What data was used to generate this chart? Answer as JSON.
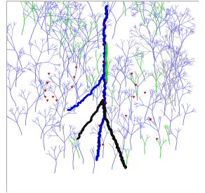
{
  "background_color": "#ffffff",
  "border_color": "#aaaaaa",
  "colors": {
    "blue_thin": "#6666dd",
    "blue_thick": "#0000cc",
    "green_thin": "#33bb33",
    "green_thick": "#22cc22",
    "black_thick": "#111111",
    "gray_thin": "#999999",
    "red": "#cc0000"
  },
  "figsize": [
    2.92,
    2.75
  ],
  "dpi": 100
}
